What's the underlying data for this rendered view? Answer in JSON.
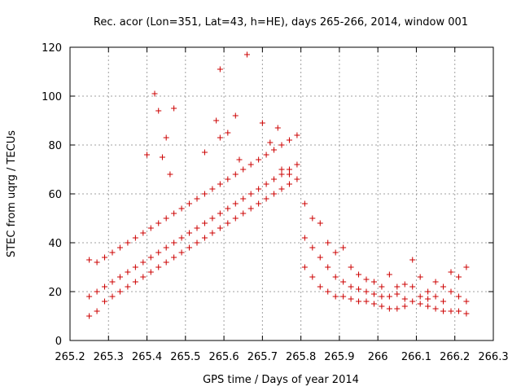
{
  "chart_data": {
    "type": "scatter",
    "title": "Rec. acor (Lon=351, Lat=43, h=HE), days 265-266, 2014, window 001",
    "xlabel": "GPS time / Days of year 2014",
    "ylabel": "STEC from uqrg / TECUs",
    "xlim": [
      265.2,
      266.3
    ],
    "ylim": [
      0,
      120
    ],
    "x_ticks": [
      "265.2",
      "265.3",
      "265.4",
      "265.5",
      "265.6",
      "265.7",
      "265.8",
      "265.9",
      "266",
      "266.1",
      "266.2",
      "266.3"
    ],
    "y_ticks": [
      "0",
      "20",
      "40",
      "60",
      "80",
      "100",
      "120"
    ],
    "grid": true,
    "marker": "+",
    "color": "#cc0000",
    "series": [
      {
        "points": [
          [
            265.25,
            33
          ],
          [
            265.27,
            32
          ],
          [
            265.29,
            34
          ],
          [
            265.31,
            36
          ],
          [
            265.33,
            38
          ],
          [
            265.35,
            40
          ],
          [
            265.37,
            42
          ],
          [
            265.39,
            44
          ],
          [
            265.41,
            46
          ],
          [
            265.43,
            48
          ],
          [
            265.45,
            50
          ],
          [
            265.47,
            52
          ],
          [
            265.49,
            54
          ],
          [
            265.51,
            56
          ],
          [
            265.53,
            58
          ],
          [
            265.55,
            60
          ],
          [
            265.57,
            62
          ],
          [
            265.59,
            64
          ],
          [
            265.61,
            66
          ],
          [
            265.63,
            68
          ],
          [
            265.65,
            70
          ],
          [
            265.67,
            72
          ],
          [
            265.69,
            74
          ],
          [
            265.71,
            76
          ],
          [
            265.73,
            78
          ],
          [
            265.75,
            80
          ],
          [
            265.77,
            82
          ],
          [
            265.79,
            84
          ],
          [
            265.25,
            18
          ],
          [
            265.27,
            20
          ],
          [
            265.29,
            22
          ],
          [
            265.31,
            24
          ],
          [
            265.33,
            26
          ],
          [
            265.35,
            28
          ],
          [
            265.37,
            30
          ],
          [
            265.39,
            32
          ],
          [
            265.41,
            34
          ],
          [
            265.43,
            36
          ],
          [
            265.45,
            38
          ],
          [
            265.47,
            40
          ],
          [
            265.49,
            42
          ],
          [
            265.51,
            44
          ],
          [
            265.53,
            46
          ],
          [
            265.55,
            48
          ],
          [
            265.57,
            50
          ],
          [
            265.59,
            52
          ],
          [
            265.61,
            54
          ],
          [
            265.63,
            56
          ],
          [
            265.65,
            58
          ],
          [
            265.67,
            60
          ],
          [
            265.69,
            62
          ],
          [
            265.71,
            64
          ],
          [
            265.73,
            66
          ],
          [
            265.75,
            68
          ],
          [
            265.77,
            70
          ],
          [
            265.79,
            72
          ],
          [
            265.25,
            10
          ],
          [
            265.27,
            12
          ],
          [
            265.29,
            16
          ],
          [
            265.31,
            18
          ],
          [
            265.33,
            20
          ],
          [
            265.35,
            22
          ],
          [
            265.37,
            24
          ],
          [
            265.39,
            26
          ],
          [
            265.41,
            28
          ],
          [
            265.43,
            30
          ],
          [
            265.45,
            32
          ],
          [
            265.47,
            34
          ],
          [
            265.49,
            36
          ],
          [
            265.51,
            38
          ],
          [
            265.53,
            40
          ],
          [
            265.55,
            42
          ],
          [
            265.57,
            44
          ],
          [
            265.59,
            46
          ],
          [
            265.61,
            48
          ],
          [
            265.63,
            50
          ],
          [
            265.65,
            52
          ],
          [
            265.67,
            54
          ],
          [
            265.69,
            56
          ],
          [
            265.71,
            58
          ],
          [
            265.73,
            60
          ],
          [
            265.75,
            62
          ],
          [
            265.77,
            64
          ],
          [
            265.79,
            66
          ],
          [
            265.42,
            101
          ],
          [
            265.59,
            111
          ],
          [
            265.66,
            117
          ],
          [
            265.63,
            92
          ],
          [
            265.7,
            89
          ],
          [
            265.58,
            90
          ],
          [
            265.47,
            95
          ],
          [
            265.43,
            94
          ],
          [
            265.61,
            85
          ],
          [
            265.72,
            81
          ],
          [
            265.4,
            76
          ],
          [
            265.44,
            75
          ],
          [
            265.45,
            83
          ],
          [
            265.46,
            68
          ],
          [
            265.55,
            77
          ],
          [
            265.64,
            74
          ],
          [
            265.75,
            70
          ],
          [
            265.77,
            68
          ],
          [
            265.74,
            87
          ],
          [
            265.59,
            83
          ],
          [
            265.81,
            56
          ],
          [
            265.83,
            50
          ],
          [
            265.85,
            48
          ],
          [
            265.87,
            40
          ],
          [
            265.89,
            36
          ],
          [
            265.91,
            38
          ],
          [
            265.93,
            30
          ],
          [
            265.95,
            27
          ],
          [
            265.97,
            25
          ],
          [
            265.99,
            24
          ],
          [
            266.01,
            22
          ],
          [
            266.03,
            27
          ],
          [
            266.05,
            22
          ],
          [
            266.07,
            23
          ],
          [
            266.09,
            33
          ],
          [
            266.11,
            26
          ],
          [
            266.13,
            20
          ],
          [
            266.15,
            24
          ],
          [
            266.17,
            22
          ],
          [
            266.19,
            28
          ],
          [
            266.21,
            26
          ],
          [
            266.23,
            30
          ],
          [
            265.81,
            42
          ],
          [
            265.83,
            38
          ],
          [
            265.85,
            34
          ],
          [
            265.87,
            30
          ],
          [
            265.89,
            26
          ],
          [
            265.91,
            24
          ],
          [
            265.93,
            22
          ],
          [
            265.95,
            21
          ],
          [
            265.97,
            20
          ],
          [
            265.99,
            19
          ],
          [
            266.01,
            18
          ],
          [
            266.03,
            18
          ],
          [
            266.05,
            19
          ],
          [
            266.07,
            17
          ],
          [
            266.09,
            22
          ],
          [
            266.11,
            18
          ],
          [
            266.13,
            17
          ],
          [
            266.15,
            18
          ],
          [
            266.17,
            16
          ],
          [
            266.19,
            20
          ],
          [
            266.21,
            18
          ],
          [
            266.23,
            16
          ],
          [
            265.81,
            30
          ],
          [
            265.83,
            26
          ],
          [
            265.85,
            22
          ],
          [
            265.87,
            20
          ],
          [
            265.89,
            18
          ],
          [
            265.91,
            18
          ],
          [
            265.93,
            17
          ],
          [
            265.95,
            16
          ],
          [
            265.97,
            16
          ],
          [
            265.99,
            15
          ],
          [
            266.01,
            14
          ],
          [
            266.03,
            13
          ],
          [
            266.05,
            13
          ],
          [
            266.07,
            14
          ],
          [
            266.09,
            16
          ],
          [
            266.11,
            15
          ],
          [
            266.13,
            14
          ],
          [
            266.15,
            13
          ],
          [
            266.17,
            12
          ],
          [
            266.19,
            12
          ],
          [
            266.21,
            12
          ],
          [
            266.23,
            11
          ]
        ]
      }
    ]
  }
}
